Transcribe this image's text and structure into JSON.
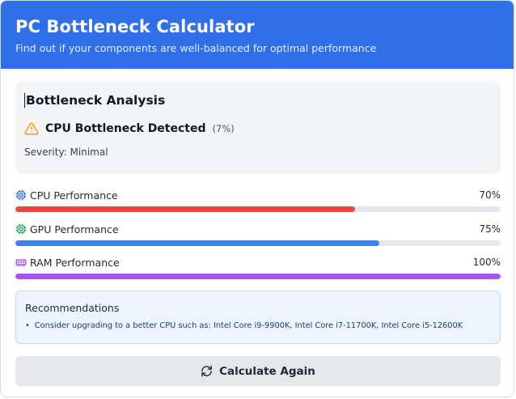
{
  "header": {
    "title": "PC Bottleneck Calculator",
    "subtitle": "Find out if your components are well-balanced for optimal performance",
    "background": "#2f6fe8"
  },
  "analysis": {
    "title": "Bottleneck Analysis",
    "status": "CPU Bottleneck Detected",
    "percent": "(7%)",
    "severity": "Severity: Minimal",
    "icon": "warning-triangle-icon",
    "warn_color": "#f59e0b"
  },
  "performance": [
    {
      "label": "CPU Performance",
      "value_text": "70%",
      "value": 0.7,
      "color": "#ef4444",
      "icon": "cpu-chip-icon",
      "icon_color": "#2563eb"
    },
    {
      "label": "GPU Performance",
      "value_text": "75%",
      "value": 0.75,
      "color": "#3b82f6",
      "icon": "gpu-chip-icon",
      "icon_color": "#16a34a"
    },
    {
      "label": "RAM Performance",
      "value_text": "100%",
      "value": 1.0,
      "color": "#a855f7",
      "icon": "memory-icon",
      "icon_color": "#9333ea"
    }
  ],
  "recommendations": {
    "title": "Recommendations",
    "items": [
      "Consider upgrading to a better CPU such as: Intel Core i9-9900K, Intel Core i7-11700K, Intel Core i5-12600K"
    ]
  },
  "button": {
    "label": "Calculate Again",
    "icon": "refresh-icon"
  }
}
